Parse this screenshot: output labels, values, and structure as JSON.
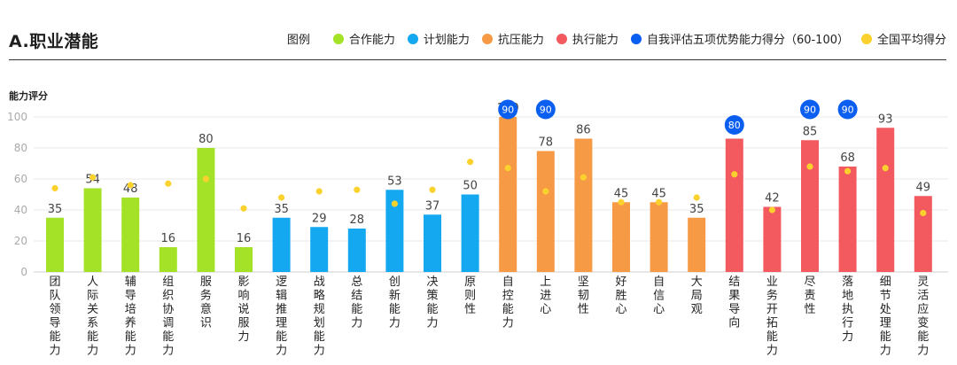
{
  "header": {
    "title": "A.职业潜能",
    "legend_label": "图例",
    "legend": [
      {
        "name": "合作能力",
        "color": "#a4e227",
        "shape": "dot"
      },
      {
        "name": "计划能力",
        "color": "#14a8f0",
        "shape": "dot"
      },
      {
        "name": "抗压能力",
        "color": "#f79a45",
        "shape": "dot"
      },
      {
        "name": "执行能力",
        "color": "#f25a5f",
        "shape": "dot"
      },
      {
        "name": "自我评估五项优势能力得分（60-100）",
        "color": "#0b5ff0",
        "shape": "dot"
      },
      {
        "name": "全国平均得分",
        "color": "#fbd22d",
        "shape": "dot"
      }
    ]
  },
  "chart_data": {
    "type": "bar",
    "title": "A.职业潜能",
    "ylabel": "能力评分",
    "xlabel": "",
    "ylim": [
      0,
      100
    ],
    "yticks": [
      0,
      20,
      40,
      60,
      80,
      100
    ],
    "grid": true,
    "legend_position": "top-right",
    "categories": [
      "团队领导能力",
      "人际关系能力",
      "辅导培养能力",
      "组织协调能力",
      "服务意识",
      "影响说服力",
      "逻辑推理能力",
      "战略规划能力",
      "总结能力",
      "创新能力",
      "决策能力",
      "原则性",
      "自控能力",
      "上进心",
      "坚韧性",
      "好胜心",
      "自信心",
      "大局观",
      "结果导向",
      "业务开拓能力",
      "尽责性",
      "落地执行力",
      "细节处理能力",
      "灵活应变能力"
    ],
    "groups": [
      "合作能力",
      "合作能力",
      "合作能力",
      "合作能力",
      "合作能力",
      "合作能力",
      "计划能力",
      "计划能力",
      "计划能力",
      "计划能力",
      "计划能力",
      "计划能力",
      "抗压能力",
      "抗压能力",
      "抗压能力",
      "抗压能力",
      "抗压能力",
      "抗压能力",
      "执行能力",
      "执行能力",
      "执行能力",
      "执行能力",
      "执行能力",
      "执行能力"
    ],
    "group_colors": {
      "合作能力": "#a4e227",
      "计划能力": "#14a8f0",
      "抗压能力": "#f79a45",
      "执行能力": "#f25a5f"
    },
    "series": [
      {
        "name": "能力评分",
        "values": [
          35,
          54,
          48,
          16,
          80,
          16,
          35,
          29,
          28,
          53,
          37,
          50,
          100,
          78,
          86,
          45,
          45,
          35,
          86,
          42,
          85,
          68,
          93,
          49
        ]
      },
      {
        "name": "全国平均得分",
        "color": "#fbd22d",
        "values": [
          54,
          61,
          56,
          57,
          60,
          41,
          48,
          52,
          53,
          44,
          53,
          71,
          67,
          52,
          61,
          45,
          45,
          48,
          63,
          40,
          68,
          65,
          67,
          38
        ]
      },
      {
        "name": "自我评估五项优势能力得分（60-100）",
        "color": "#0b5ff0",
        "values": [
          null,
          null,
          null,
          null,
          null,
          null,
          null,
          null,
          null,
          null,
          null,
          null,
          90,
          90,
          null,
          null,
          null,
          null,
          80,
          null,
          90,
          90,
          null,
          null
        ]
      }
    ]
  }
}
